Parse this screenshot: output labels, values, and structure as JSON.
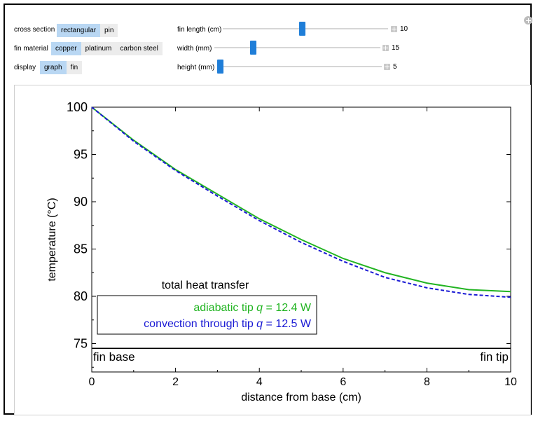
{
  "controls": {
    "cross_section": {
      "label": "cross section",
      "options": [
        "rectangular",
        "pin"
      ],
      "selected": 0
    },
    "fin_material": {
      "label": "fin material",
      "options": [
        "copper",
        "platinum",
        "carbon steel"
      ],
      "selected": 0
    },
    "display": {
      "label": "display",
      "options": [
        "graph",
        "fin"
      ],
      "selected": 0
    },
    "fin_length": {
      "label": "fin length (cm)",
      "value": "10",
      "fraction": 0.48
    },
    "width": {
      "label": "width (mm)",
      "value": "15",
      "fraction": 0.23
    },
    "height": {
      "label": "height (mm)",
      "value": "5",
      "fraction": 0.0
    }
  },
  "chart_data": {
    "type": "line",
    "xlabel": "distance from base (cm)",
    "ylabel": "temperature (°C)",
    "xlim": [
      0,
      10
    ],
    "ylim": [
      72,
      100
    ],
    "xticks": [
      0,
      2,
      4,
      6,
      8,
      10
    ],
    "yticks": [
      75,
      80,
      85,
      90,
      95,
      100
    ],
    "ambient": 74.5,
    "series": [
      {
        "name": "adiabatic tip",
        "color": "#22b422",
        "style": "solid",
        "x": [
          0,
          1,
          2,
          3,
          4,
          5,
          6,
          7,
          8,
          9,
          10
        ],
        "y": [
          100,
          96.5,
          93.4,
          90.8,
          88.2,
          86.0,
          84.0,
          82.5,
          81.4,
          80.7,
          80.5
        ]
      },
      {
        "name": "convection through tip",
        "color": "#1a1ad4",
        "style": "dashed",
        "x": [
          0,
          1,
          2,
          3,
          4,
          5,
          6,
          7,
          8,
          9,
          10
        ],
        "y": [
          100,
          96.4,
          93.3,
          90.6,
          88.0,
          85.7,
          83.7,
          82.0,
          80.9,
          80.2,
          79.9
        ]
      }
    ],
    "annotations": {
      "box_title": "total heat transfer",
      "adiabatic_prefix": "adiabatic tip ",
      "adiabatic_value": " = 12.4 W",
      "convection_prefix": "convection through tip ",
      "convection_value": " = 12.5 W",
      "q_symbol": "q",
      "fin_base": "fin base",
      "fin_tip": "fin tip"
    }
  }
}
